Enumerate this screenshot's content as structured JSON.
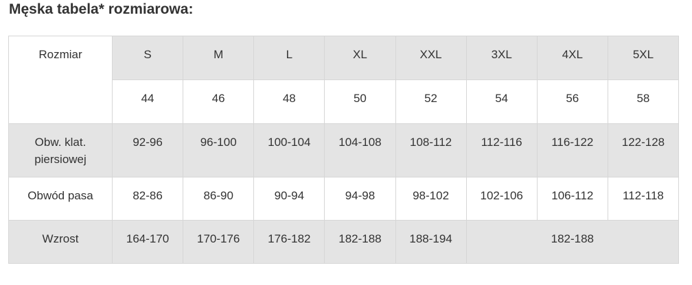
{
  "title": "Męska tabela* rozmiarowa:",
  "table": {
    "header_label": "Rozmiar",
    "sizes": [
      "S",
      "M",
      "L",
      "XL",
      "XXL",
      "3XL",
      "4XL",
      "5XL"
    ],
    "eu_sizes": [
      "44",
      "46",
      "48",
      "50",
      "52",
      "54",
      "56",
      "58"
    ],
    "rows": [
      {
        "label": "Obw. klat. piersiowej",
        "values": [
          "92-96",
          "96-100",
          "100-104",
          "104-108",
          "108-112",
          "112-116",
          "116-122",
          "122-128"
        ]
      },
      {
        "label": "Obwód pasa",
        "values": [
          "82-86",
          "86-90",
          "90-94",
          "94-98",
          "98-102",
          "102-106",
          "106-112",
          "112-118"
        ]
      },
      {
        "label": "Wzrost",
        "values": [
          "164-170",
          "170-176",
          "176-182",
          "182-188",
          "188-194"
        ],
        "merged_value": "182-188"
      }
    ]
  }
}
